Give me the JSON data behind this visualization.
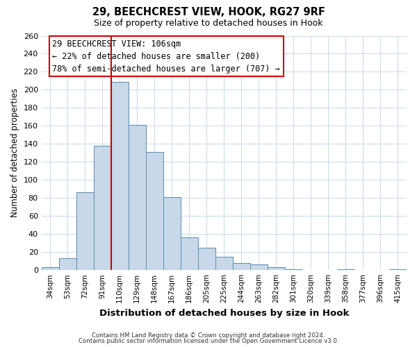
{
  "title1": "29, BEECHCREST VIEW, HOOK, RG27 9RF",
  "title2": "Size of property relative to detached houses in Hook",
  "xlabel": "Distribution of detached houses by size in Hook",
  "ylabel": "Number of detached properties",
  "bin_labels": [
    "34sqm",
    "53sqm",
    "72sqm",
    "91sqm",
    "110sqm",
    "129sqm",
    "148sqm",
    "167sqm",
    "186sqm",
    "205sqm",
    "225sqm",
    "244sqm",
    "263sqm",
    "282sqm",
    "301sqm",
    "320sqm",
    "339sqm",
    "358sqm",
    "377sqm",
    "396sqm",
    "415sqm"
  ],
  "bar_heights": [
    3,
    13,
    86,
    138,
    209,
    161,
    131,
    81,
    36,
    25,
    15,
    8,
    6,
    3,
    1,
    0,
    0,
    1,
    0,
    0,
    1
  ],
  "bar_color": "#c8d8e8",
  "bar_edge_color": "#5a8ab0",
  "ylim": [
    0,
    260
  ],
  "yticks": [
    0,
    20,
    40,
    60,
    80,
    100,
    120,
    140,
    160,
    180,
    200,
    220,
    240,
    260
  ],
  "property_bin_index": 4,
  "vline_color": "#cc0000",
  "annotation_title": "29 BEECHCREST VIEW: 106sqm",
  "annotation_line1": "← 22% of detached houses are smaller (200)",
  "annotation_line2": "78% of semi-detached houses are larger (707) →",
  "annotation_box_color": "#ffffff",
  "annotation_box_edge": "#cc0000",
  "footer1": "Contains HM Land Registry data © Crown copyright and database right 2024.",
  "footer2": "Contains public sector information licensed under the Open Government Licence v3.0.",
  "background_color": "#ffffff",
  "grid_color": "#c8d8ea"
}
